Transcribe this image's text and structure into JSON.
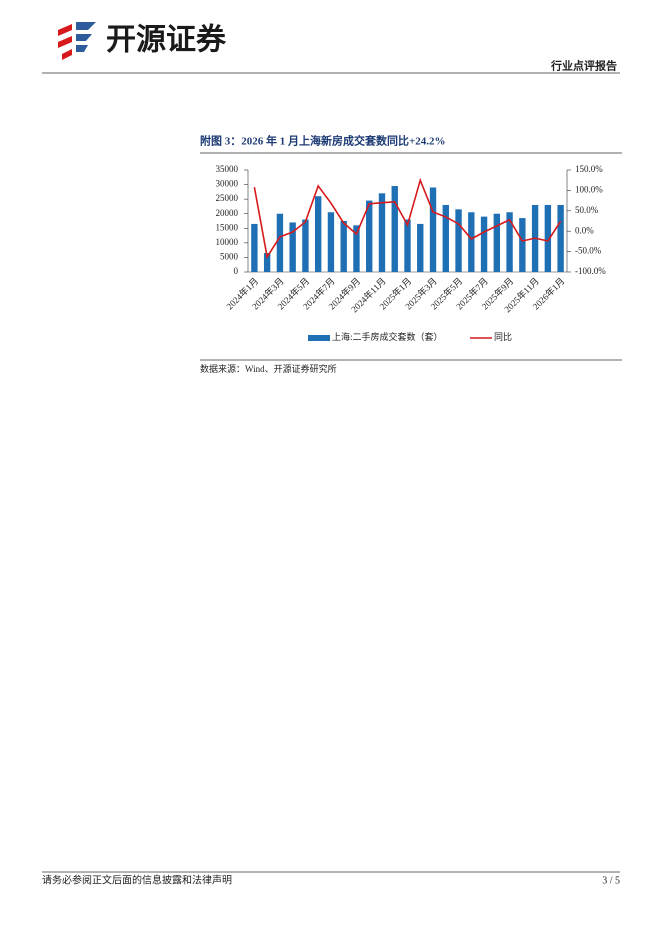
{
  "header": {
    "brand": "开源证券",
    "report_type": "行业点评报告"
  },
  "chart_data": {
    "type": "bar",
    "title": "附图 3：2026 年 1 月上海新房成交套数同比+24.2%",
    "categories": [
      "2024年1月",
      null,
      "2024年3月",
      null,
      "2024年5月",
      null,
      "2024年7月",
      null,
      "2024年9月",
      null,
      "2024年11月",
      null,
      "2025年1月",
      null,
      "2025年3月",
      null,
      "2025年5月",
      null,
      "2025年7月",
      null,
      "2025年9月",
      null,
      "2025年11月",
      null,
      "2026年1月"
    ],
    "series": [
      {
        "name": "上海:二手房成交套数（套）",
        "type": "bar",
        "color": "#1f6fb5",
        "values": [
          16500,
          6500,
          20000,
          17000,
          18000,
          26000,
          20500,
          17500,
          16000,
          24500,
          27000,
          29500,
          18000,
          16500,
          29000,
          23000,
          21500,
          20500,
          19000,
          20000,
          20500,
          18500,
          23000,
          23000,
          23000
        ]
      },
      {
        "name": "同比",
        "type": "line",
        "axis": "y2",
        "color": "#d7191c",
        "values": [
          108,
          -63,
          -14,
          -2,
          23,
          111,
          69,
          20,
          -7,
          67,
          70,
          72,
          15,
          125,
          47,
          35,
          18,
          -19,
          -2,
          13,
          28,
          -24,
          -17,
          -24,
          24.2
        ]
      }
    ],
    "ylim": [
      0,
      35000
    ],
    "yticks": [
      0,
      5000,
      10000,
      15000,
      20000,
      25000,
      30000,
      35000
    ],
    "y2lim": [
      -100,
      150
    ],
    "y2ticks": [
      {
        "value": -100,
        "label": "-100.0%"
      },
      {
        "value": -50,
        "label": "-50.0%"
      },
      {
        "value": 0,
        "label": "0.0%"
      },
      {
        "value": 50,
        "label": "50.0%"
      },
      {
        "value": 100,
        "label": "100.0%"
      },
      {
        "value": 150,
        "label": "150.0%"
      }
    ],
    "source": "数据来源：Wind、开源证券研究所"
  },
  "footer": {
    "disclaimer": "请务必参阅正文后面的信息披露和法律声明",
    "page": "3 / 5"
  }
}
